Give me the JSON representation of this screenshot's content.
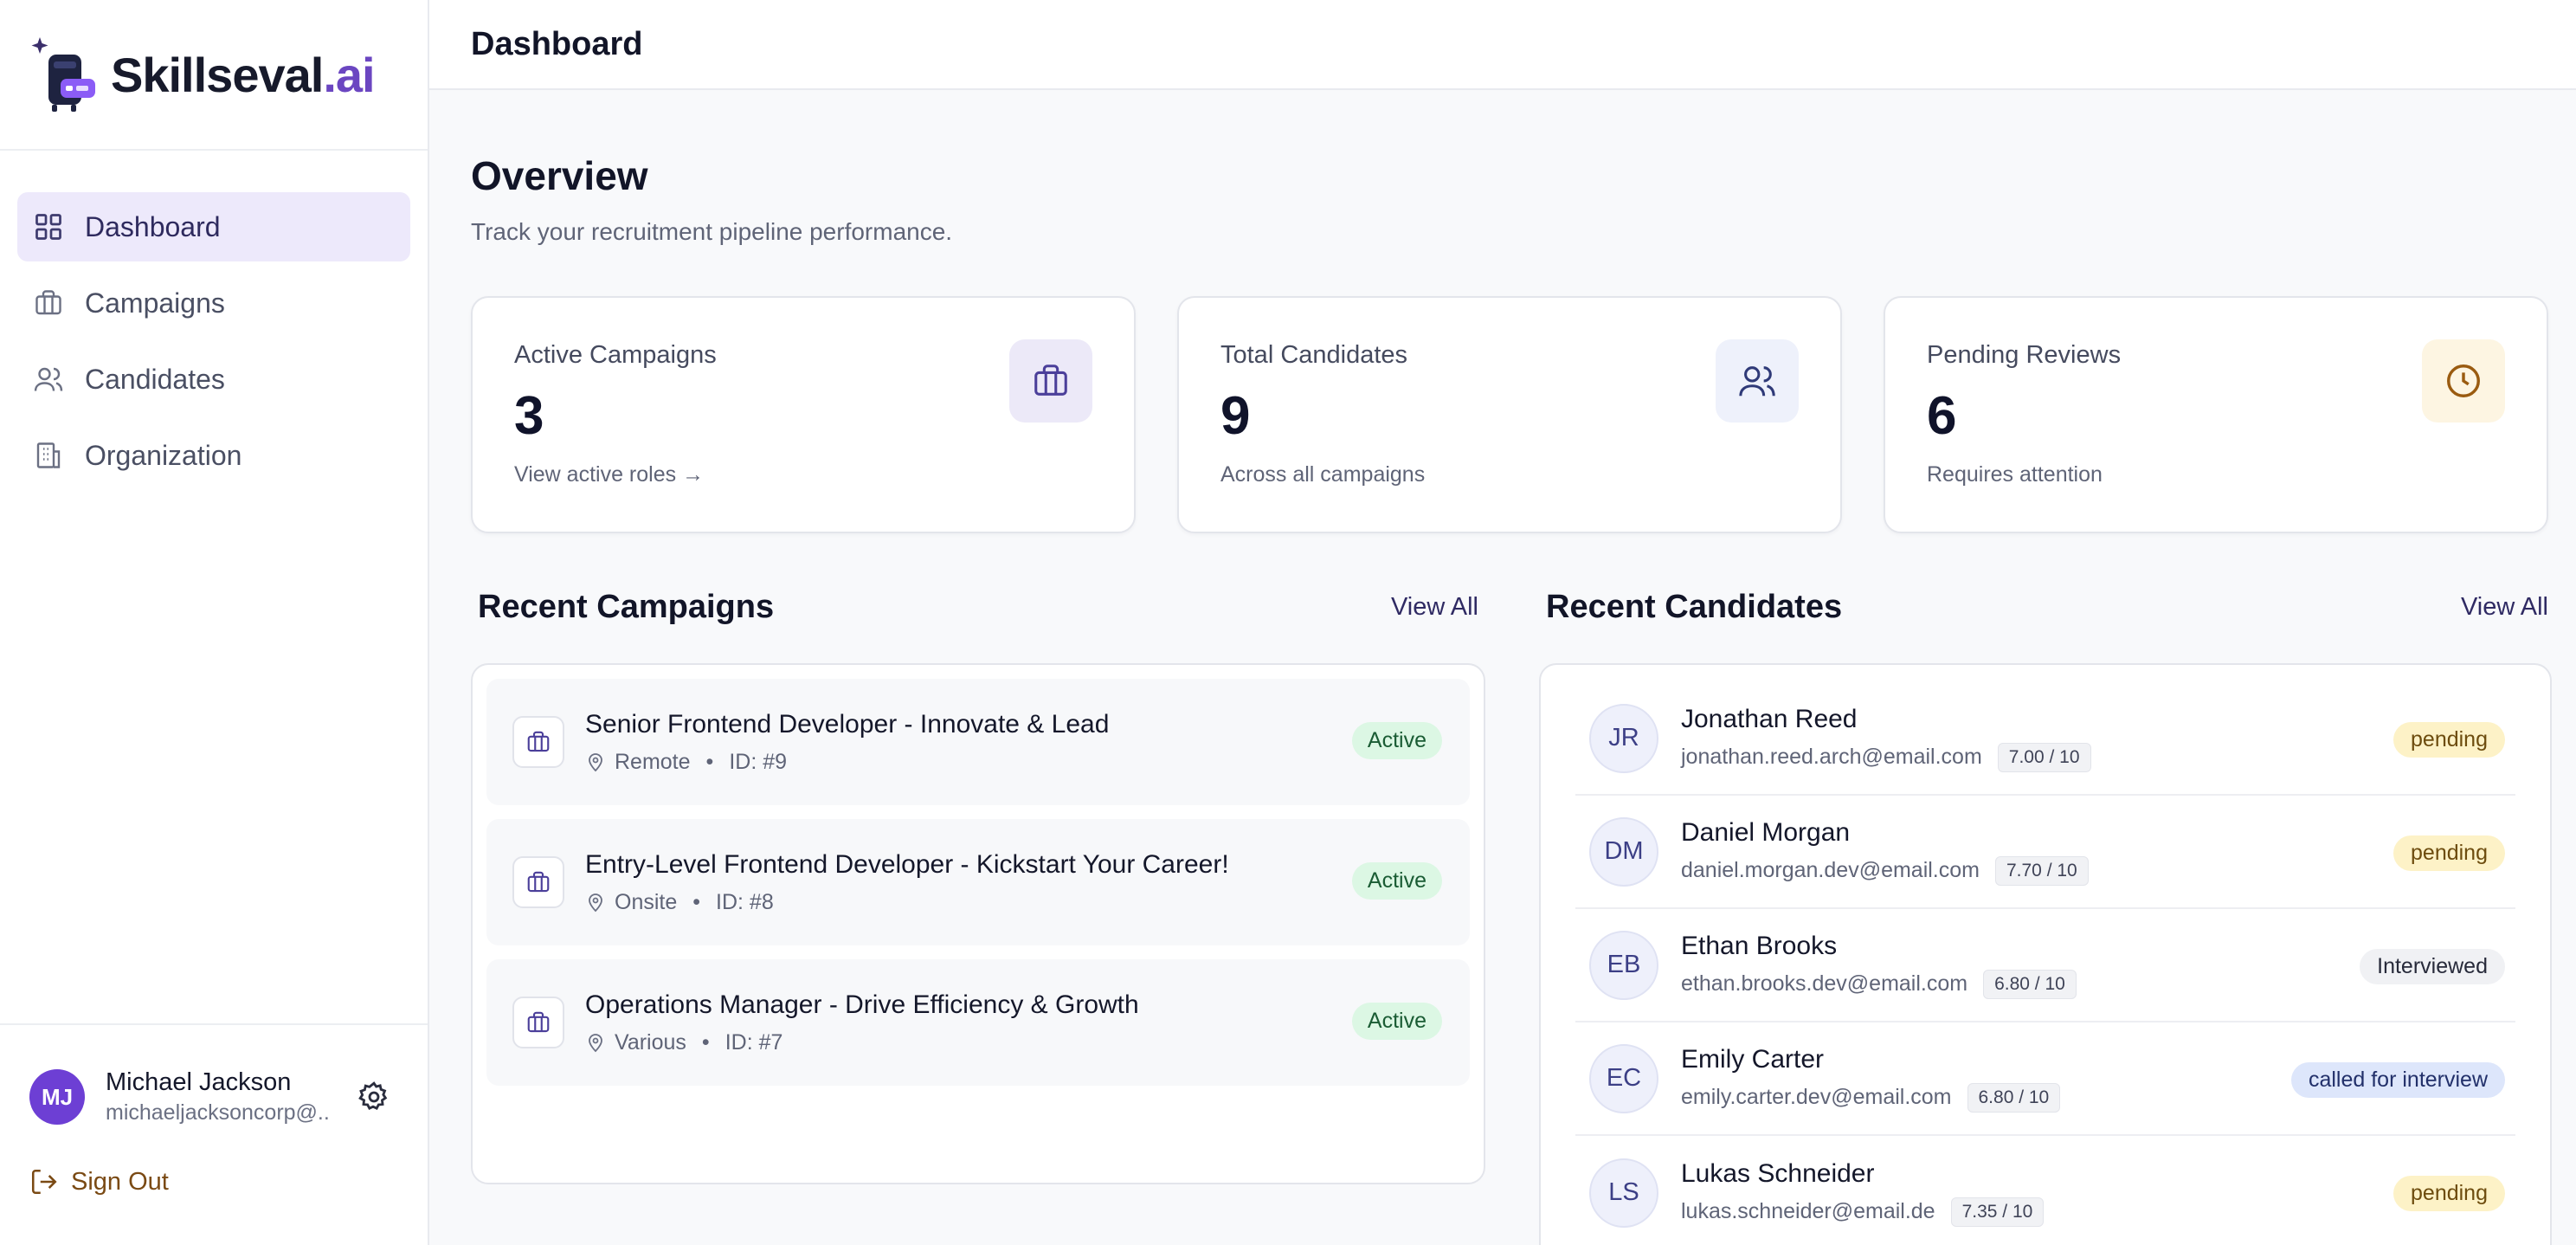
{
  "app": {
    "brand_name": "Skillseval",
    "brand_suffix": ".ai"
  },
  "sidebar": {
    "items": [
      {
        "label": "Dashboard",
        "icon": "grid-icon",
        "active": true
      },
      {
        "label": "Campaigns",
        "icon": "briefcase-icon",
        "active": false
      },
      {
        "label": "Candidates",
        "icon": "users-icon",
        "active": false
      },
      {
        "label": "Organization",
        "icon": "building-icon",
        "active": false
      }
    ],
    "user": {
      "initials": "MJ",
      "name": "Michael Jackson",
      "email": "michaeljacksoncorp@..."
    },
    "sign_out_label": "Sign Out"
  },
  "header": {
    "title": "Dashboard"
  },
  "overview": {
    "title": "Overview",
    "subtitle": "Track your recruitment pipeline performance."
  },
  "stats": [
    {
      "label": "Active Campaigns",
      "value": "3",
      "note": "View active roles →",
      "icon": "briefcase-icon",
      "icon_bg": "#ece9f8",
      "icon_color": "#4b3f9a"
    },
    {
      "label": "Total Candidates",
      "value": "9",
      "note": "Across all campaigns",
      "icon": "users-icon",
      "icon_bg": "#eef1fb",
      "icon_color": "#2f3a78"
    },
    {
      "label": "Pending Reviews",
      "value": "6",
      "note": "Requires attention",
      "icon": "clock-icon",
      "icon_bg": "#fdf5e2",
      "icon_color": "#9a5b10"
    }
  ],
  "recent_campaigns": {
    "title": "Recent Campaigns",
    "view_all": "View All",
    "items": [
      {
        "title": "Senior Frontend Developer - Innovate & Lead",
        "location": "Remote",
        "id": "ID: #9",
        "status": "Active"
      },
      {
        "title": "Entry-Level Frontend Developer - Kickstart Your Career!",
        "location": "Onsite",
        "id": "ID: #8",
        "status": "Active"
      },
      {
        "title": "Operations Manager - Drive Efficiency & Growth",
        "location": "Various",
        "id": "ID: #7",
        "status": "Active"
      }
    ]
  },
  "recent_candidates": {
    "title": "Recent Candidates",
    "view_all": "View All",
    "items": [
      {
        "initials": "JR",
        "name": "Jonathan Reed",
        "email": "jonathan.reed.arch@email.com",
        "score": "7.00 / 10",
        "status": "pending",
        "status_kind": "pending"
      },
      {
        "initials": "DM",
        "name": "Daniel Morgan",
        "email": "daniel.morgan.dev@email.com",
        "score": "7.70 / 10",
        "status": "pending",
        "status_kind": "pending"
      },
      {
        "initials": "EB",
        "name": "Ethan Brooks",
        "email": "ethan.brooks.dev@email.com",
        "score": "6.80 / 10",
        "status": "Interviewed",
        "status_kind": "interviewed"
      },
      {
        "initials": "EC",
        "name": "Emily Carter",
        "email": "emily.carter.dev@email.com",
        "score": "6.80 / 10",
        "status": "called for interview",
        "status_kind": "called"
      },
      {
        "initials": "LS",
        "name": "Lukas Schneider",
        "email": "lukas.schneider@email.de",
        "score": "7.35 / 10",
        "status": "pending",
        "status_kind": "pending"
      }
    ]
  },
  "colors": {
    "accent": "#6d3fd4",
    "active_nav_bg": "#ede9fb"
  }
}
